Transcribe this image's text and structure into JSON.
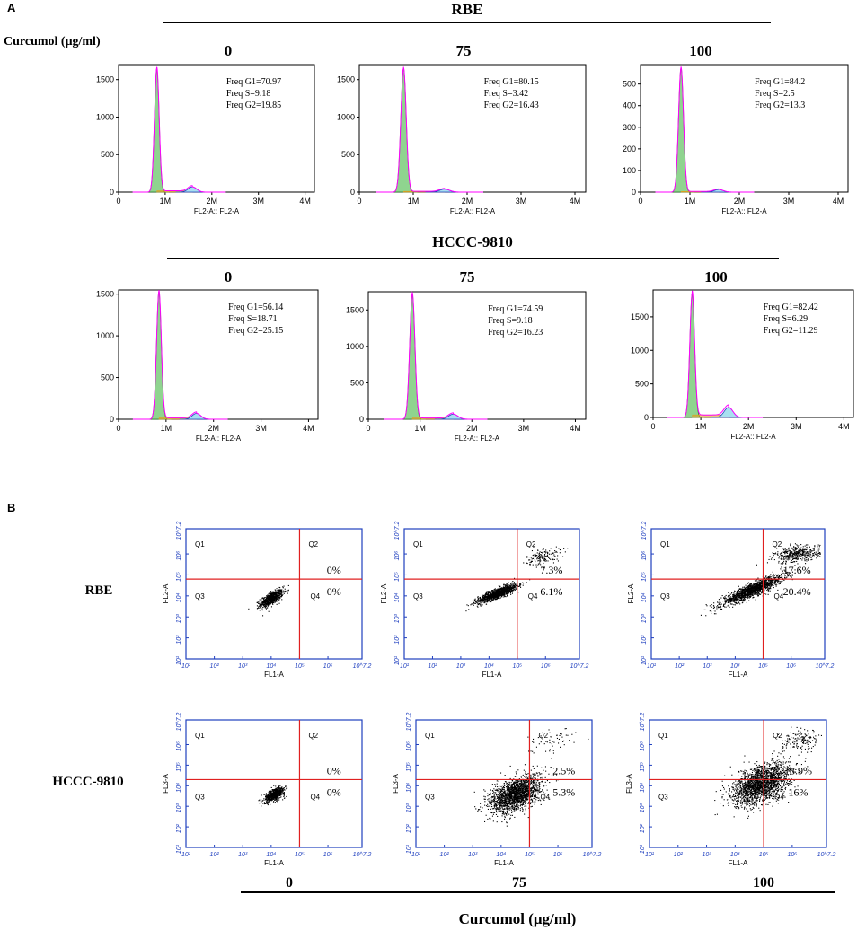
{
  "panel_labels": {
    "a": "A",
    "b": "B"
  },
  "section_a": {
    "treatment_label": "Curcumol (μg/ml)",
    "rows": [
      {
        "cell_line": "RBE",
        "doses": [
          "0",
          "75",
          "100"
        ]
      },
      {
        "cell_line": "HCCC-9810",
        "doses": [
          "0",
          "75",
          "100"
        ]
      }
    ]
  },
  "section_b": {
    "row_labels": [
      "RBE",
      "HCCC-9810"
    ],
    "bottom_doses": [
      "0",
      "75",
      "100"
    ],
    "bottom_label": "Curcumol (μg/ml)"
  },
  "colors": {
    "g1_fill": "#8fd48f",
    "g1_stroke": "#2a7a2a",
    "model": "#ff00ff",
    "s_phase": "#e0a020",
    "g2_fill": "#a8e0f0",
    "g2_stroke": "#2040c0",
    "quadrant_line": "#e02020",
    "scatter_frame": "#1f3fbf",
    "dot": "#000000"
  },
  "chart_data": [
    {
      "type": "area",
      "id": "hist-rbe-0",
      "cell_line": "RBE",
      "dose": "0",
      "xlabel": "FL2-A:: FL2-A",
      "x_ticks": [
        "0",
        "1M",
        "2M",
        "3M",
        "4M"
      ],
      "y_ticks": [
        "0",
        "500",
        "1000",
        "1500"
      ],
      "ylim": [
        0,
        1700
      ],
      "g1_peak_pos": 0.82,
      "g1_peak_height": 1650,
      "g2_peak_height": 70,
      "stats": [
        "Freq G1=70.97",
        "Freq S=9.18",
        "Freq G2=19.85"
      ]
    },
    {
      "type": "area",
      "id": "hist-rbe-75",
      "cell_line": "RBE",
      "dose": "75",
      "xlabel": "FL2-A:: FL2-A",
      "x_ticks": [
        "0",
        "1M",
        "2M",
        "3M",
        "4M"
      ],
      "y_ticks": [
        "0",
        "500",
        "1000",
        "1500"
      ],
      "ylim": [
        0,
        1700
      ],
      "g1_peak_pos": 0.82,
      "g1_peak_height": 1650,
      "g2_peak_height": 40,
      "stats": [
        "Freq G1=80.15",
        "Freq S=3.42",
        "Freq G2=16.43"
      ]
    },
    {
      "type": "area",
      "id": "hist-rbe-100",
      "cell_line": "RBE",
      "dose": "100",
      "xlabel": "FL2-A:: FL2-A",
      "x_ticks": [
        "0",
        "1M",
        "2M",
        "3M",
        "4M"
      ],
      "y_ticks": [
        "0",
        "100",
        "200",
        "300",
        "400",
        "500"
      ],
      "ylim": [
        0,
        590
      ],
      "g1_peak_pos": 0.82,
      "g1_peak_height": 575,
      "g2_peak_height": 12,
      "stats": [
        "Freq G1=84.2",
        "Freq S=2.5",
        "Freq G2=13.3"
      ]
    },
    {
      "type": "area",
      "id": "hist-hccc-0",
      "cell_line": "HCCC-9810",
      "dose": "0",
      "xlabel": "FL2-A:: FL2-A",
      "x_ticks": [
        "0",
        "1M",
        "2M",
        "3M",
        "4M"
      ],
      "y_ticks": [
        "0",
        "500",
        "1000",
        "1500"
      ],
      "ylim": [
        0,
        1550
      ],
      "g1_peak_pos": 0.85,
      "g1_peak_height": 1530,
      "g2_peak_height": 70,
      "stats": [
        "Freq G1=56.14",
        "Freq S=18.71",
        "Freq G2=25.15"
      ]
    },
    {
      "type": "area",
      "id": "hist-hccc-75",
      "cell_line": "HCCC-9810",
      "dose": "75",
      "xlabel": "FL2-A:: FL2-A",
      "x_ticks": [
        "0",
        "1M",
        "2M",
        "3M",
        "4M"
      ],
      "y_ticks": [
        "0",
        "500",
        "1000",
        "1500"
      ],
      "ylim": [
        0,
        1750
      ],
      "g1_peak_pos": 0.85,
      "g1_peak_height": 1720,
      "g2_peak_height": 70,
      "stats": [
        "Freq G1=74.59",
        "Freq S=9.18",
        "Freq G2=16.23"
      ]
    },
    {
      "type": "area",
      "id": "hist-hccc-100",
      "cell_line": "HCCC-9810",
      "dose": "100",
      "xlabel": "FL2-A:: FL2-A",
      "x_ticks": [
        "0",
        "1M",
        "2M",
        "3M",
        "4M"
      ],
      "y_ticks": [
        "0",
        "500",
        "1000",
        "1500"
      ],
      "ylim": [
        0,
        1900
      ],
      "g1_peak_pos": 0.82,
      "g1_peak_height": 1850,
      "g2_peak_height": 150,
      "stats": [
        "Freq G1=82.42",
        "Freq S=6.29",
        "Freq G2=11.29"
      ]
    },
    {
      "type": "scatter",
      "id": "scatter-rbe-0",
      "cell_line": "RBE",
      "dose": "0",
      "xlabel": "FL1-A",
      "ylabel": "FL2-A",
      "ticks": [
        "10¹",
        "10²",
        "10³",
        "10⁴",
        "10⁵",
        "10⁶",
        "10^7.2"
      ],
      "xlim": [
        1,
        7.2
      ],
      "ylim": [
        1,
        7.2
      ],
      "gate": [
        5,
        4.8
      ],
      "quadrants": [
        "Q1",
        "Q2",
        "Q3",
        "Q4"
      ],
      "percent_q2": "0%",
      "percent_q4": "0%",
      "clusters": [
        {
          "x": 4.0,
          "y": 3.9,
          "sx": 0.2,
          "sy": 0.2,
          "n": 700,
          "rho": 0.7
        }
      ]
    },
    {
      "type": "scatter",
      "id": "scatter-rbe-75",
      "cell_line": "RBE",
      "dose": "75",
      "xlabel": "FL1-A",
      "ylabel": "FL2-A",
      "ticks": [
        "10¹",
        "10²",
        "10³",
        "10⁴",
        "10⁵",
        "10⁶",
        "10^7.2"
      ],
      "xlim": [
        1,
        7.2
      ],
      "ylim": [
        1,
        7.2
      ],
      "gate": [
        5,
        4.8
      ],
      "quadrants": [
        "Q1",
        "Q2",
        "Q3",
        "Q4"
      ],
      "percent_q2": "7.3%",
      "percent_q4": "6.1%",
      "clusters": [
        {
          "x": 4.3,
          "y": 4.15,
          "sx": 0.35,
          "sy": 0.22,
          "n": 1200,
          "rho": 0.85
        },
        {
          "x": 5.9,
          "y": 5.9,
          "sx": 0.3,
          "sy": 0.2,
          "n": 150,
          "rho": 0.3
        }
      ]
    },
    {
      "type": "scatter",
      "id": "scatter-rbe-100",
      "cell_line": "RBE",
      "dose": "100",
      "xlabel": "FL1-A",
      "ylabel": "FL2-A",
      "ticks": [
        "10¹",
        "10²",
        "10³",
        "10⁴",
        "10⁵",
        "10⁶",
        "10^7.2"
      ],
      "xlim": [
        1,
        7.2
      ],
      "ylim": [
        1,
        7.2
      ],
      "gate": [
        5,
        4.8
      ],
      "quadrants": [
        "Q1",
        "Q2",
        "Q3",
        "Q4"
      ],
      "percent_q2": "17.6%",
      "percent_q4": "20.4%",
      "clusters": [
        {
          "x": 4.6,
          "y": 4.3,
          "sx": 0.55,
          "sy": 0.35,
          "n": 1500,
          "rho": 0.9
        },
        {
          "x": 6.2,
          "y": 6.0,
          "sx": 0.4,
          "sy": 0.2,
          "n": 400,
          "rho": 0.3
        }
      ]
    },
    {
      "type": "scatter",
      "id": "scatter-hccc-0",
      "cell_line": "HCCC-9810",
      "dose": "0",
      "xlabel": "FL1-A",
      "ylabel": "FL3-A",
      "ticks": [
        "10¹",
        "10²",
        "10³",
        "10⁴",
        "10⁵",
        "10⁶",
        "10^7.2"
      ],
      "xlim": [
        1,
        7.2
      ],
      "ylim": [
        1,
        7.2
      ],
      "gate": [
        5,
        4.3
      ],
      "quadrants": [
        "Q1",
        "Q2",
        "Q3",
        "Q4"
      ],
      "percent_q2": "0%",
      "percent_q4": "0%",
      "clusters": [
        {
          "x": 4.1,
          "y": 3.6,
          "sx": 0.18,
          "sy": 0.18,
          "n": 600,
          "rho": 0.6
        }
      ]
    },
    {
      "type": "scatter",
      "id": "scatter-hccc-75",
      "cell_line": "HCCC-9810",
      "dose": "75",
      "xlabel": "FL1-A",
      "ylabel": "FL3-A",
      "ticks": [
        "10¹",
        "10²",
        "10³",
        "10⁴",
        "10⁵",
        "10⁶",
        "10^7.2"
      ],
      "xlim": [
        1,
        7.2
      ],
      "ylim": [
        1,
        7.2
      ],
      "gate": [
        5,
        4.3
      ],
      "quadrants": [
        "Q1",
        "Q2",
        "Q3",
        "Q4"
      ],
      "percent_q2": "2.5%",
      "percent_q4": "5.3%",
      "clusters": [
        {
          "x": 4.5,
          "y": 3.6,
          "sx": 0.45,
          "sy": 0.45,
          "n": 1800,
          "rho": 0.5
        },
        {
          "x": 5.8,
          "y": 6.2,
          "sx": 0.4,
          "sy": 0.3,
          "n": 60,
          "rho": 0.2
        }
      ]
    },
    {
      "type": "scatter",
      "id": "scatter-hccc-100",
      "cell_line": "HCCC-9810",
      "dose": "100",
      "xlabel": "FL1-A",
      "ylabel": "FL3-A",
      "ticks": [
        "10¹",
        "10²",
        "10³",
        "10⁴",
        "10⁵",
        "10⁶",
        "10^7.2"
      ],
      "xlim": [
        1,
        7.2
      ],
      "ylim": [
        1,
        7.2
      ],
      "gate": [
        5,
        4.3
      ],
      "quadrants": [
        "Q1",
        "Q2",
        "Q3",
        "Q4"
      ],
      "percent_q2": "18.9%",
      "percent_q4": "16%",
      "clusters": [
        {
          "x": 4.9,
          "y": 4.1,
          "sx": 0.5,
          "sy": 0.5,
          "n": 2000,
          "rho": 0.5
        },
        {
          "x": 6.3,
          "y": 6.2,
          "sx": 0.35,
          "sy": 0.25,
          "n": 150,
          "rho": 0.2
        }
      ]
    }
  ]
}
